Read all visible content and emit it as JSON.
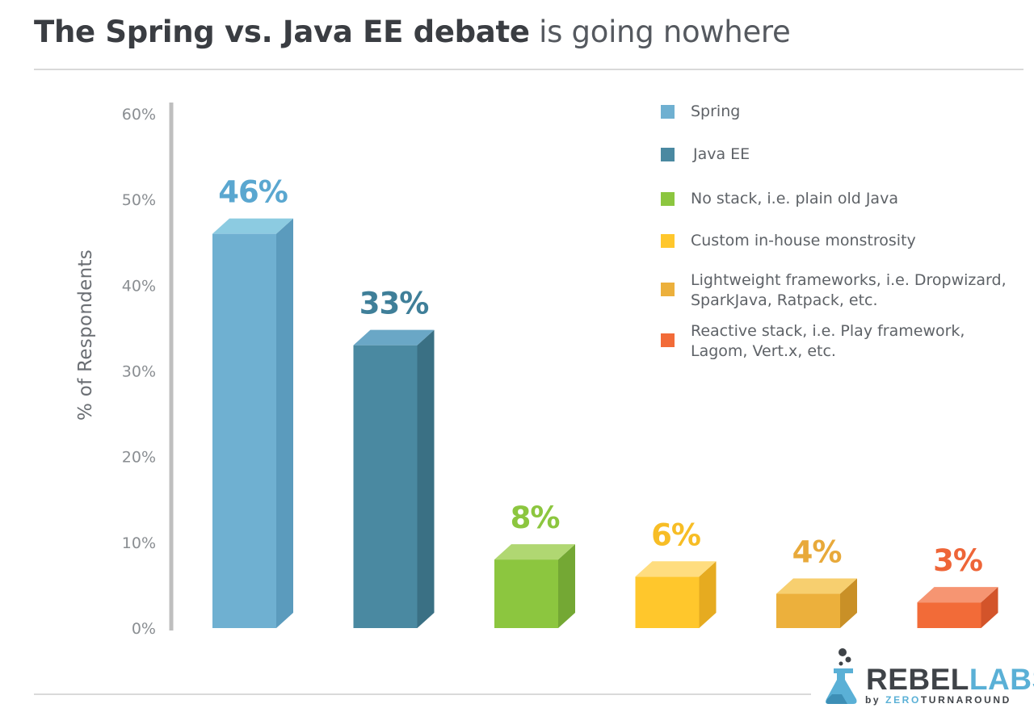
{
  "title": {
    "bold": "The Spring vs. Java EE debate",
    "rest": "is going nowhere"
  },
  "chart_data": {
    "type": "bar",
    "title": "The Spring vs. Java EE debate is going nowhere",
    "ylabel": "% of Respondents",
    "ylim": [
      0,
      60
    ],
    "yticks": [
      "0%",
      "10%",
      "20%",
      "30%",
      "40%",
      "50%",
      "60%"
    ],
    "grid": false,
    "legend_position": "top-right",
    "series": [
      {
        "name": "Spring",
        "value": 46,
        "label": "46%",
        "color": "#6fb0d1",
        "side": "#5b9bbd",
        "top": "#8ccbe1",
        "label_color": "#5aa7d0"
      },
      {
        "name": "Java EE",
        "value": 33,
        "label": "33%",
        "color": "#4a89a1",
        "side": "#3a7084",
        "top": "#6aa7c6",
        "label_color": "#3f7f99"
      },
      {
        "name": "No stack, i.e. plain old Java",
        "value": 8,
        "label": "8%",
        "color": "#8cc63f",
        "side": "#74a834",
        "top": "#b0d772",
        "label_color": "#8cc63f"
      },
      {
        "name": "Custom in-house monstrosity",
        "value": 6,
        "label": "6%",
        "color": "#ffc72c",
        "side": "#e6ab20",
        "top": "#ffdd7f",
        "label_color": "#f7bd25"
      },
      {
        "name": "Lightweight frameworks, i.e. Dropwizard, SparkJava, Ratpack, etc.",
        "value": 4,
        "label": "4%",
        "color": "#ecb03c",
        "side": "#c99027",
        "top": "#f7cf6f",
        "label_color": "#e8a93a"
      },
      {
        "name": "Reactive stack, i.e. Play framework, Lagom, Vert.x, etc.",
        "value": 3,
        "label": "3%",
        "color": "#f26b38",
        "side": "#d3542a",
        "top": "#f69572",
        "label_color": "#ee6538"
      }
    ]
  },
  "legend": [
    {
      "text": "Spring",
      "color": "#6fb0d1"
    },
    {
      "text": "Java EE",
      "color": "#4a89a1"
    },
    {
      "text": "No stack, i.e. plain old Java",
      "color": "#8cc63f"
    },
    {
      "text": "Custom in-house monstrosity",
      "color": "#ffc72c"
    },
    {
      "text": "Lightweight frameworks, i.e. Dropwizard, SparkJava, Ratpack, etc.",
      "color": "#ecb03c"
    },
    {
      "text": "Reactive stack, i.e. Play framework, Lagom, Vert.x, etc.",
      "color": "#f26b38"
    }
  ],
  "logo": {
    "rebel": "REBEL",
    "labs": "LABS",
    "by": "by ",
    "zero": "ZERO",
    "turnaround": "TURNAROUND"
  }
}
